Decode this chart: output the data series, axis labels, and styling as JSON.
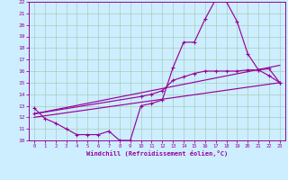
{
  "bg_color": "#cceeff",
  "line_color": "#990099",
  "grid_color": "#aaccbb",
  "xlabel": "Windchill (Refroidissement éolien,°C)",
  "xlim": [
    -0.5,
    23.5
  ],
  "ylim": [
    10,
    22
  ],
  "xticks": [
    0,
    1,
    2,
    3,
    4,
    5,
    6,
    7,
    8,
    9,
    10,
    11,
    12,
    13,
    14,
    15,
    16,
    17,
    18,
    19,
    20,
    21,
    22,
    23
  ],
  "yticks": [
    10,
    11,
    12,
    13,
    14,
    15,
    16,
    17,
    18,
    19,
    20,
    21,
    22
  ],
  "series1_x": [
    0,
    1,
    2,
    3,
    4,
    5,
    6,
    7,
    8,
    9,
    10,
    11,
    12,
    13,
    14,
    15,
    16,
    17,
    18,
    19,
    20,
    21,
    22,
    23
  ],
  "series1_y": [
    12.8,
    11.9,
    11.5,
    11.0,
    10.5,
    10.5,
    10.5,
    10.8,
    10.0,
    10.0,
    13.0,
    13.2,
    13.5,
    16.3,
    18.5,
    18.5,
    20.5,
    22.2,
    22.0,
    20.3,
    17.5,
    16.1,
    16.2,
    15.0
  ],
  "series2_x": [
    0,
    23
  ],
  "series2_y": [
    12.3,
    16.5
  ],
  "series3_x": [
    0,
    23
  ],
  "series3_y": [
    12.0,
    15.0
  ],
  "series4_x": [
    0,
    10,
    11,
    12,
    13,
    14,
    15,
    16,
    17,
    18,
    19,
    20,
    21,
    22,
    23
  ],
  "series4_y": [
    12.3,
    13.8,
    14.0,
    14.3,
    15.2,
    15.5,
    15.8,
    16.0,
    16.0,
    16.0,
    16.0,
    16.1,
    16.1,
    15.6,
    15.0
  ]
}
